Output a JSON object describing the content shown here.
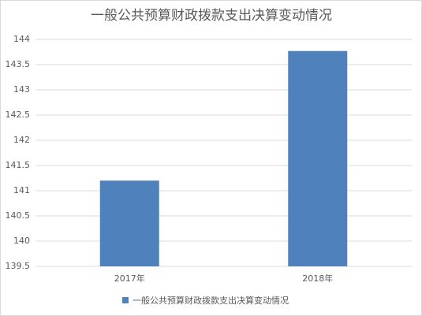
{
  "chart_data": {
    "type": "bar",
    "title": "一般公共预算财政拨款支出决算变动情况",
    "categories": [
      "2017年",
      "2018年"
    ],
    "series": [
      {
        "name": "一般公共预算财政拨款支出决算变动情况",
        "color": "#4f81bd",
        "values": [
          141.2,
          143.77
        ]
      }
    ],
    "ylim": [
      139.5,
      144
    ],
    "yticks": [
      139.5,
      140,
      140.5,
      141,
      141.5,
      142,
      142.5,
      143,
      143.5,
      144
    ],
    "grid": true,
    "legend": "bottom"
  }
}
